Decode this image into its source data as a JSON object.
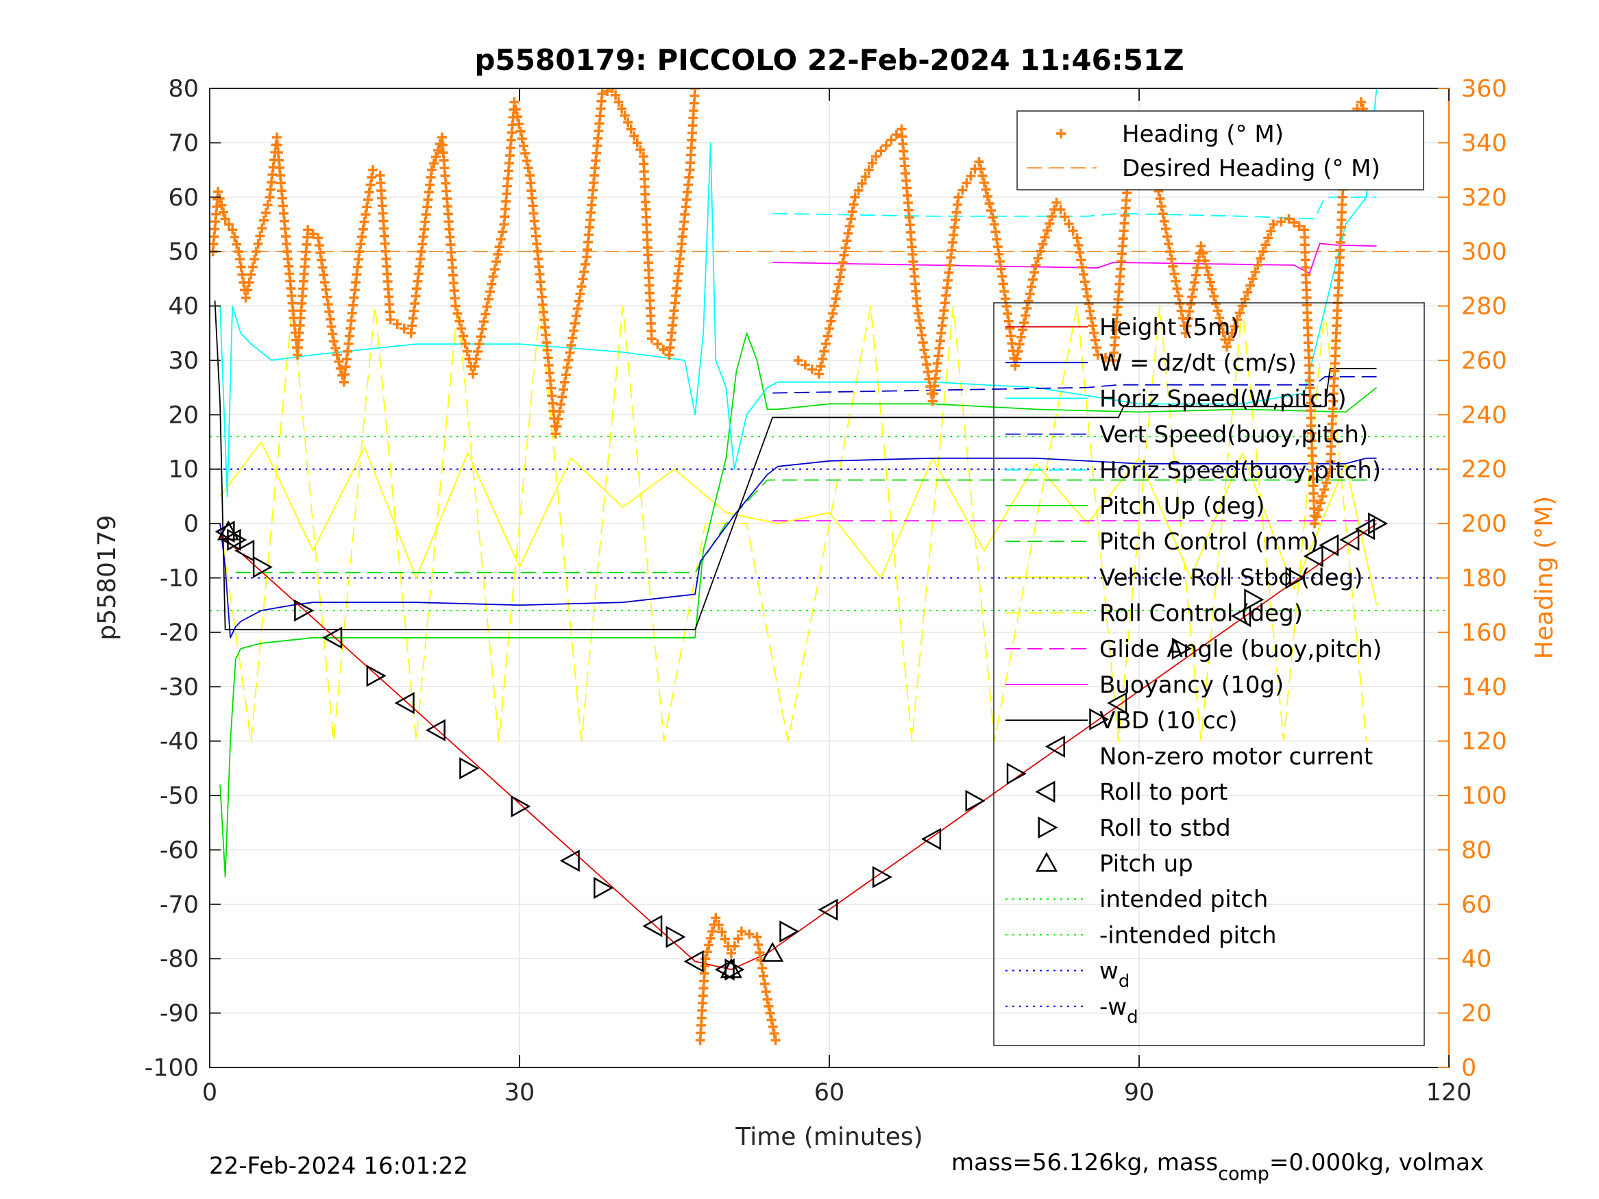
{
  "chart_data": {
    "type": "line",
    "title": "p5580179: PICCOLO 22-Feb-2024 11:46:51Z",
    "xlabel": "Time (minutes)",
    "ylabel": "p5580179",
    "ylabel_right": "Heading (°M)",
    "xlim": [
      0,
      120
    ],
    "ylim": [
      -100,
      80
    ],
    "ylim_right": [
      0,
      360
    ],
    "xticks": [
      "0",
      "30",
      "60",
      "90",
      "120"
    ],
    "yticks_left": [
      "80",
      "70",
      "60",
      "50",
      "40",
      "30",
      "20",
      "10",
      "0",
      "-10",
      "-20",
      "-30",
      "-40",
      "-50",
      "-60",
      "-70",
      "-80",
      "-90",
      "-100"
    ],
    "yticks_right": [
      "360",
      "340",
      "320",
      "300",
      "280",
      "260",
      "240",
      "220",
      "200",
      "180",
      "160",
      "140",
      "120",
      "100",
      "80",
      "60",
      "40",
      "20",
      "0"
    ],
    "grid": true,
    "colors": {
      "heading": "#ff7f0e",
      "height": "#e00000",
      "w": "#0000cc",
      "horiz_speed_w_pitch": "#00ffff",
      "vert_speed_buoy_pitch": "#0000cc",
      "horiz_speed_buoy_pitch": "#0000cc",
      "pitch": "#00dd00",
      "pitch_control": "#00dd00",
      "roll": "#ffff00",
      "roll_control": "#ffff00",
      "glide_angle": "#ff00ff",
      "buoyancy": "#ff00ff",
      "vbd": "#000000",
      "intended_pitch": "#00ee00",
      "wd": "#0000ff"
    },
    "legend_top": [
      {
        "name": "Heading (° M)",
        "style": "plus-marker",
        "color": "#ff7f0e"
      },
      {
        "name": "Desired Heading (° M)",
        "style": "dashed",
        "color": "#ff7f0e"
      }
    ],
    "legend_main": [
      {
        "name": "Height (5m)",
        "style": "solid",
        "color": "#e00000"
      },
      {
        "name": "W = dz/dt (cm/s)",
        "style": "solid",
        "color": "#0000cc"
      },
      {
        "name": "Horiz Speed(W,pitch)",
        "style": "solid",
        "color": "#00ffff"
      },
      {
        "name": "Vert Speed(buoy,pitch)",
        "style": "dashed",
        "color": "#0000cc"
      },
      {
        "name": "Horiz Speed(buoy,pitch)",
        "style": "dashed",
        "color": "#00ffff"
      },
      {
        "name": "Pitch Up (deg)",
        "style": "solid",
        "color": "#00dd00"
      },
      {
        "name": "Pitch Control (mm)",
        "style": "dashed",
        "color": "#00dd00"
      },
      {
        "name": "Vehicle Roll Stbd (deg)",
        "style": "solid",
        "color": "#ffff00"
      },
      {
        "name": "Roll Control (deg)",
        "style": "dashed",
        "color": "#ffff00"
      },
      {
        "name": "Glide Angle (buoy,pitch)",
        "style": "dashed",
        "color": "#ff00ff"
      },
      {
        "name": "Buoyancy (10g)",
        "style": "solid",
        "color": "#ff00ff"
      },
      {
        "name": "VBD (10 cc)",
        "style": "solid",
        "color": "#000000"
      },
      {
        "name": "Non-zero motor current",
        "style": "none",
        "color": "#000000"
      },
      {
        "name": "Roll to port",
        "style": "tri-left",
        "color": "#000000"
      },
      {
        "name": "Roll to stbd",
        "style": "tri-right",
        "color": "#000000"
      },
      {
        "name": "Pitch up",
        "style": "tri-up",
        "color": "#000000"
      },
      {
        "name": "intended pitch",
        "style": "dotted",
        "color": "#00ee00"
      },
      {
        "name": "-intended pitch",
        "style": "dotted",
        "color": "#00ee00"
      },
      {
        "name": "w",
        "sub": "d",
        "style": "dotted",
        "color": "#0000ff"
      },
      {
        "name": "-w",
        "sub": "d",
        "style": "dotted",
        "color": "#0000ff"
      }
    ],
    "reference_lines": {
      "desired_heading": 300,
      "intended_pitch": 16,
      "neg_intended_pitch": -16,
      "wd": 10,
      "neg_wd": -10
    },
    "series": [
      {
        "name": "Height (5m)",
        "axis": "left",
        "x": [
          1.0,
          47.0,
          50.5,
          54.0,
          113.0
        ],
        "y": [
          -2,
          -80.5,
          -82,
          -79,
          0
        ]
      },
      {
        "name": "W = dz/dt (cm/s)",
        "axis": "left",
        "x": [
          1,
          1.5,
          2,
          2.5,
          3,
          5,
          8,
          10,
          20,
          30,
          40,
          47,
          47.5,
          51,
          54,
          55,
          60,
          70,
          80,
          90,
          100,
          110,
          112,
          113
        ],
        "y": [
          0,
          -8,
          -21,
          -19,
          -18,
          -16,
          -15,
          -14.5,
          -14.5,
          -15,
          -14.5,
          -13,
          -7,
          2,
          9,
          10.5,
          11.5,
          12,
          12,
          11,
          11,
          11,
          12,
          12
        ]
      },
      {
        "name": "Horiz Speed(W,pitch)",
        "axis": "left",
        "x": [
          1,
          1.7,
          2.2,
          3,
          4,
          6,
          10,
          20,
          30,
          40,
          46,
          47,
          47.8,
          48.5,
          49,
          50,
          50.8,
          52,
          54,
          55,
          60,
          70,
          80,
          90,
          100,
          106,
          110,
          112,
          113
        ],
        "y": [
          40,
          5,
          40,
          35,
          33,
          30,
          31,
          33,
          33,
          31.5,
          30,
          20,
          35,
          70,
          30,
          25,
          10,
          20,
          25,
          26,
          26,
          26,
          25,
          22,
          22,
          24,
          55,
          60,
          80
        ]
      },
      {
        "name": "Vert Speed(buoy,pitch)",
        "axis": "left",
        "x": [
          54.5,
          70,
          85,
          88,
          100,
          107,
          108,
          113
        ],
        "y": [
          24,
          24.5,
          25,
          25.5,
          25.5,
          25.5,
          27,
          27
        ]
      },
      {
        "name": "Horiz Speed(buoy,pitch)",
        "axis": "left",
        "x": [
          54.5,
          70,
          85,
          88,
          100,
          107,
          108,
          113
        ],
        "y": [
          57,
          56.5,
          56.5,
          57,
          56.5,
          56,
          60,
          60
        ]
      },
      {
        "name": "Pitch Up (deg)",
        "axis": "left",
        "x": [
          1,
          1.5,
          2,
          2.5,
          3,
          5,
          10,
          20,
          30,
          40,
          47,
          47.8,
          50,
          51,
          52,
          53,
          54,
          55,
          60,
          70,
          80,
          90,
          100,
          110,
          113
        ],
        "y": [
          -48,
          -65,
          -40,
          -25,
          -23,
          -22,
          -21,
          -21,
          -21,
          -21,
          -21,
          -5,
          12,
          28,
          35,
          30,
          21,
          21,
          22,
          22,
          21,
          20.5,
          21,
          20.5,
          25
        ]
      },
      {
        "name": "Pitch Control (mm)",
        "axis": "left",
        "x": [
          2.5,
          47,
          50,
          54,
          113
        ],
        "y": [
          -9,
          -9,
          0,
          8,
          8
        ]
      },
      {
        "name": "Vehicle Roll Stbd (deg)",
        "axis": "left",
        "x": [
          1,
          5,
          10,
          15,
          20,
          25,
          30,
          35,
          40,
          45,
          50,
          55,
          60,
          65,
          70,
          75,
          80,
          85,
          90,
          95,
          100,
          105,
          110,
          113
        ],
        "y": [
          5,
          15,
          -5,
          14,
          -10,
          13,
          -8,
          12,
          3,
          10,
          2,
          0,
          2,
          -10,
          12,
          -5,
          11,
          0,
          12,
          -10,
          13,
          -12,
          11,
          -15
        ]
      },
      {
        "name": "Roll Control (deg)",
        "axis": "left",
        "x": [
          1,
          4,
          8,
          12,
          16,
          20,
          24,
          28,
          32,
          36,
          40,
          44,
          48,
          52,
          56,
          60,
          64,
          68,
          72,
          76,
          80,
          84,
          88,
          92,
          96,
          100,
          104,
          108,
          112
        ],
        "y": [
          0,
          -40,
          40,
          -40,
          40,
          -40,
          40,
          -40,
          40,
          -40,
          40,
          -40,
          0,
          0,
          -40,
          0,
          40,
          -40,
          40,
          -40,
          0,
          40,
          -40,
          40,
          -40,
          40,
          -40,
          40,
          -40
        ]
      },
      {
        "name": "Glide Angle (buoy,pitch)",
        "axis": "left",
        "x": [
          54.5,
          113
        ],
        "y": [
          0.5,
          0.5
        ]
      },
      {
        "name": "Buoyancy (10g)",
        "axis": "left",
        "x": [
          54.5,
          70,
          86,
          87.5,
          105,
          106.5,
          107.5,
          109,
          113
        ],
        "y": [
          48,
          47.5,
          47,
          48,
          47.5,
          46,
          51.5,
          51.2,
          51
        ]
      },
      {
        "name": "VBD (10 cc)",
        "axis": "left",
        "x": [
          0.5,
          1,
          1.5,
          47,
          54.5,
          88,
          88.5,
          108,
          108.5,
          113
        ],
        "y": [
          41,
          22,
          -19.5,
          -19.5,
          19.5,
          19.5,
          21.5,
          21.5,
          28.5,
          28.5
        ]
      },
      {
        "name": "Heading (° M)",
        "axis": "right",
        "x": [
          0.3,
          0.8,
          1.5,
          2.2,
          2.8,
          3.5,
          4.5,
          5.8,
          6.5,
          7.5,
          8.5,
          9.5,
          10.5,
          12,
          13,
          14.5,
          15.8,
          16.5,
          17.5,
          19.5,
          21.5,
          22.5,
          23.8,
          25.5,
          28.5,
          29.5,
          31,
          33.5,
          36.5,
          38,
          39,
          42,
          42.8,
          44.5,
          46.5,
          47,
          47.5,
          48,
          49,
          50.5,
          51.5,
          53,
          54,
          54.8,
          57,
          59,
          60.5,
          62.5,
          64.5,
          67,
          68.5,
          70,
          72.5,
          74.5,
          76,
          78,
          80,
          82,
          84,
          86,
          87.5,
          89,
          90.5,
          93,
          94.5,
          96,
          98.5,
          100,
          103,
          104.5,
          106,
          107,
          108.5,
          110,
          111.5,
          113
        ],
        "y": [
          300,
          322,
          312,
          308,
          300,
          283,
          300,
          320,
          342,
          300,
          262,
          308,
          305,
          267,
          252,
          300,
          330,
          328,
          275,
          270,
          330,
          342,
          280,
          255,
          310,
          355,
          328,
          233,
          298,
          358,
          360,
          335,
          268,
          262,
          330,
          360,
          10,
          40,
          55,
          42,
          50,
          48,
          25,
          10,
          260,
          255,
          280,
          320,
          335,
          345,
          280,
          245,
          320,
          333,
          310,
          258,
          295,
          318,
          305,
          262,
          260,
          330,
          350,
          300,
          270,
          302,
          265,
          280,
          310,
          312,
          308,
          200,
          220,
          345,
          355,
          335
        ]
      }
    ],
    "markers": {
      "roll_to_port": [
        [
          1.6,
          -1.5
        ],
        [
          2.2,
          -3
        ],
        [
          3.5,
          -5
        ],
        [
          12,
          -21
        ],
        [
          19,
          -33
        ],
        [
          22,
          -38
        ],
        [
          35,
          -62
        ],
        [
          43,
          -74
        ],
        [
          47,
          -80.5
        ],
        [
          50,
          -82
        ],
        [
          60,
          -71
        ],
        [
          70,
          -58
        ],
        [
          82,
          -41
        ],
        [
          88,
          -33
        ],
        [
          100,
          -17
        ],
        [
          107,
          -6
        ],
        [
          108.5,
          -4
        ],
        [
          110.5,
          -3
        ],
        [
          112,
          -1
        ]
      ],
      "roll_to_stbd": [
        [
          2.5,
          -3
        ],
        [
          5,
          -8
        ],
        [
          9,
          -16
        ],
        [
          16,
          -28
        ],
        [
          25,
          -45
        ],
        [
          30,
          -52
        ],
        [
          38,
          -67
        ],
        [
          45,
          -76
        ],
        [
          50.7,
          -82
        ],
        [
          56,
          -75
        ],
        [
          65,
          -65
        ],
        [
          74,
          -51
        ],
        [
          78,
          -46
        ],
        [
          86,
          -36
        ],
        [
          94,
          -23
        ],
        [
          101,
          -14
        ],
        [
          105,
          -10
        ],
        [
          113,
          0
        ]
      ],
      "pitch_up": [
        [
          1.8,
          -1.5
        ],
        [
          50.5,
          -82
        ],
        [
          54.5,
          -79
        ]
      ]
    }
  },
  "footer": {
    "timestamp": "22-Feb-2024 16:01:22",
    "mass_prefix": "mass=56.126kg, mass",
    "mass_sub": "comp",
    "mass_suffix": "=0.000kg, volmax"
  }
}
